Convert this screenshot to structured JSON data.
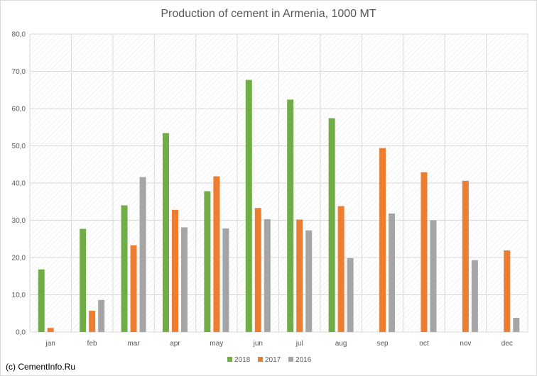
{
  "chart_data": {
    "type": "bar",
    "title": "Production of cement in Armenia, 1000 MT",
    "xlabel": "",
    "ylabel": "",
    "categories": [
      "jan",
      "feb",
      "mar",
      "apr",
      "may",
      "jun",
      "jul",
      "aug",
      "sep",
      "oct",
      "nov",
      "dec"
    ],
    "series": [
      {
        "name": "2018",
        "color": "#70ad47",
        "values": [
          16.8,
          27.7,
          34.0,
          53.4,
          37.8,
          67.7,
          62.4,
          57.4,
          null,
          null,
          null,
          null
        ]
      },
      {
        "name": "2017",
        "color": "#ed7d31",
        "values": [
          1.1,
          5.7,
          23.3,
          32.8,
          41.8,
          33.3,
          30.2,
          33.8,
          49.4,
          42.9,
          40.6,
          21.9
        ]
      },
      {
        "name": "2016",
        "color": "#a5a5a5",
        "values": [
          null,
          8.6,
          41.6,
          28.1,
          27.8,
          30.3,
          27.3,
          19.8,
          31.8,
          30.0,
          19.3,
          3.8
        ]
      }
    ],
    "ylim": [
      0,
      80
    ],
    "yticks": [
      "0,0",
      "10,0",
      "20,0",
      "30,0",
      "40,0",
      "50,0",
      "60,0",
      "70,0",
      "80,0"
    ],
    "ytick_values": [
      0,
      10,
      20,
      30,
      40,
      50,
      60,
      70,
      80
    ],
    "grid": true,
    "legend_position": "bottom"
  },
  "credit": "(c) CementInfo.Ru"
}
